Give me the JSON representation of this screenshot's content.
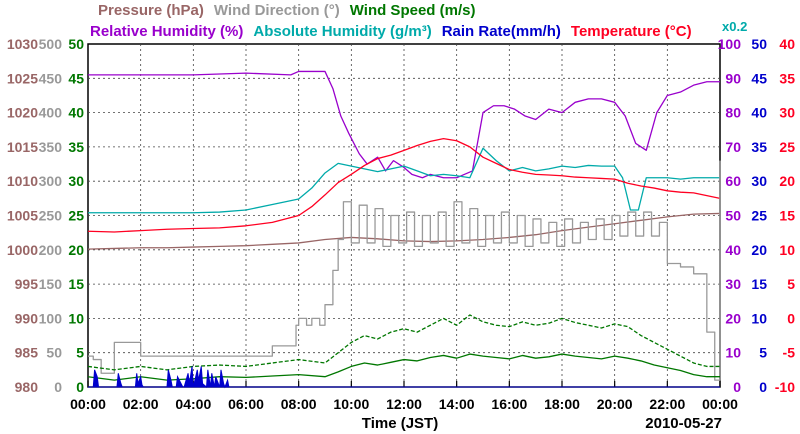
{
  "chart_data": {
    "type": "line",
    "title_rows": [
      [
        {
          "text": "Pressure (hPa)",
          "color": "#996666"
        },
        {
          "text": "Wind Direction (°)",
          "color": "#999999"
        },
        {
          "text": "Wind Speed (m/s)",
          "color": "#007700"
        }
      ],
      [
        {
          "text": "Relative Humidity (%)",
          "color": "#9900cc"
        },
        {
          "text": "Absolute Humidity (g/m³)",
          "color": "#00aaaa"
        },
        {
          "text": "Rain Rate(mm/h)",
          "color": "#0000cc"
        },
        {
          "text": "Temperature (°C)",
          "color": "#ff0022"
        }
      ]
    ],
    "corner_label": {
      "text": "x0.2",
      "color": "#00aaaa"
    },
    "xlabel": "Time (JST)",
    "date": "2010-05-27",
    "x_ticks": [
      "00:00",
      "02:00",
      "04:00",
      "06:00",
      "08:00",
      "10:00",
      "12:00",
      "14:00",
      "16:00",
      "18:00",
      "20:00",
      "22:00",
      "00:00"
    ],
    "xlim": [
      0,
      24
    ],
    "left_axes": [
      {
        "name": "pressure",
        "color": "#996666",
        "ticks": [
          "980",
          "985",
          "990",
          "995",
          "1000",
          "1005",
          "1010",
          "1015",
          "1020",
          "1025",
          "1030"
        ]
      },
      {
        "name": "wind_direction",
        "color": "#999999",
        "ticks": [
          "0",
          "50",
          "100",
          "150",
          "200",
          "250",
          "300",
          "350",
          "400",
          "450",
          "500"
        ]
      },
      {
        "name": "wind_speed",
        "color": "#007700",
        "ticks": [
          "0",
          "5",
          "10",
          "15",
          "20",
          "25",
          "30",
          "35",
          "40",
          "45",
          "50"
        ]
      }
    ],
    "right_axes": [
      {
        "name": "relative_humidity",
        "color": "#9900cc",
        "ticks": [
          "0",
          "10",
          "20",
          "30",
          "40",
          "50",
          "60",
          "70",
          "80",
          "90",
          "100"
        ]
      },
      {
        "name": "rain_rate",
        "color": "#0000cc",
        "ticks": [
          "0",
          "5",
          "10",
          "15",
          "20",
          "25",
          "30",
          "35",
          "40",
          "45",
          "50"
        ]
      },
      {
        "name": "temperature",
        "color": "#ff0022",
        "ticks": [
          "-10",
          "-5",
          "0",
          "5",
          "10",
          "15",
          "20",
          "25",
          "30",
          "35",
          "40"
        ]
      }
    ],
    "series": [
      {
        "name": "Pressure (hPa)",
        "color": "#996666",
        "ylim": [
          980,
          1030
        ],
        "x": [
          0,
          1,
          2,
          3,
          4,
          5,
          6,
          7,
          8,
          9,
          10,
          11,
          12,
          13,
          14,
          15,
          16,
          17,
          18,
          19,
          20,
          21,
          22,
          23,
          24
        ],
        "y": [
          1000.1,
          1000.2,
          1000.3,
          1000.3,
          1000.4,
          1000.5,
          1000.6,
          1000.8,
          1001.0,
          1001.5,
          1001.8,
          1001.6,
          1001.3,
          1001.2,
          1001.3,
          1001.5,
          1001.8,
          1002.2,
          1002.8,
          1003.3,
          1003.8,
          1004.3,
          1004.8,
          1005.2,
          1005.3
        ]
      },
      {
        "name": "Relative Humidity (%)",
        "color": "#9900cc",
        "ylim": [
          0,
          100
        ],
        "x": [
          0,
          2,
          4,
          6,
          7.7,
          8,
          8.5,
          9,
          9.3,
          9.6,
          9.9,
          10.3,
          10.6,
          11,
          11.3,
          11.6,
          12,
          12.3,
          12.7,
          13,
          13.5,
          14,
          14.3,
          14.6,
          15,
          15.4,
          15.8,
          16.2,
          16.6,
          17,
          17.5,
          18,
          18.5,
          19,
          19.5,
          20,
          20.4,
          20.8,
          21.2,
          21.6,
          22,
          22.5,
          23,
          23.5,
          24
        ],
        "y": [
          91,
          91,
          91,
          91.5,
          91,
          92,
          92,
          92,
          87,
          79,
          74,
          68,
          65,
          67,
          63,
          66,
          64,
          62,
          61,
          62,
          61,
          61,
          62,
          63,
          80,
          82,
          82,
          81,
          79,
          78,
          81,
          80,
          83,
          84,
          84,
          83,
          79,
          71,
          69,
          80,
          85,
          86,
          88,
          89,
          89
        ]
      },
      {
        "name": "Absolute Humidity (g/m³)",
        "color": "#00aaaa",
        "ylim": [
          0,
          500
        ],
        "x": [
          0,
          1,
          2,
          3,
          4,
          5,
          6,
          7,
          8,
          8.5,
          9,
          9.5,
          10,
          10.5,
          11,
          11.5,
          12,
          12.5,
          13,
          13.5,
          14,
          14.5,
          15,
          15.5,
          16,
          16.5,
          17,
          17.5,
          18,
          18.5,
          19,
          19.5,
          20,
          20.3,
          20.6,
          20.9,
          21.2,
          21.5,
          22,
          22.5,
          23,
          23.5,
          24
        ],
        "y": [
          254,
          254,
          254,
          254,
          254,
          255,
          258,
          266,
          274,
          290,
          312,
          326,
          322,
          318,
          314,
          318,
          322,
          315,
          308,
          310,
          308,
          305,
          348,
          330,
          315,
          320,
          315,
          318,
          322,
          320,
          323,
          322,
          322,
          305,
          258,
          258,
          305,
          305,
          305,
          303,
          305,
          305,
          305
        ]
      },
      {
        "name": "Temperature (°C)",
        "color": "#ff0022",
        "ylim": [
          -10,
          40
        ],
        "x": [
          0,
          1,
          2,
          3,
          4,
          5,
          6,
          7,
          8,
          8.5,
          9,
          9.5,
          10,
          10.5,
          11,
          11.5,
          12,
          12.5,
          13,
          13.5,
          14,
          14.5,
          15,
          15.5,
          16,
          16.5,
          17,
          17.5,
          18,
          18.5,
          19,
          19.5,
          20,
          20.5,
          21,
          21.5,
          22,
          22.5,
          23,
          23.5,
          24
        ],
        "y": [
          12.7,
          12.6,
          12.8,
          13.0,
          13.1,
          13.2,
          13.5,
          14.0,
          15.0,
          16.3,
          18.0,
          19.8,
          21.0,
          22.3,
          23.3,
          23.8,
          24.5,
          25.2,
          25.8,
          26.2,
          25.9,
          25.0,
          23.5,
          22.6,
          21.7,
          21.3,
          21.0,
          20.9,
          20.8,
          20.6,
          20.5,
          20.4,
          20.3,
          19.7,
          19.3,
          19.0,
          18.6,
          18.4,
          18.3,
          17.9,
          17.5
        ]
      },
      {
        "name": "Wind Direction (°)",
        "color": "#999999",
        "ylim": [
          0,
          500
        ],
        "style": "step",
        "x": [
          0,
          0.2,
          0.5,
          1,
          1.5,
          2,
          2.5,
          3,
          3.5,
          4,
          4.5,
          5,
          5.5,
          6,
          6.5,
          7,
          7.5,
          7.9,
          8,
          8.3,
          8.5,
          8.8,
          9,
          9.3,
          9.5,
          9.7,
          10,
          10.3,
          10.6,
          10.9,
          11.2,
          11.5,
          11.8,
          12.1,
          12.4,
          12.7,
          13,
          13.3,
          13.6,
          13.9,
          14.2,
          14.5,
          14.8,
          15.1,
          15.4,
          15.7,
          16,
          16.3,
          16.6,
          16.9,
          17.2,
          17.5,
          17.8,
          18.1,
          18.4,
          18.7,
          19,
          19.3,
          19.6,
          19.9,
          20.2,
          20.5,
          20.8,
          21.1,
          21.4,
          21.7,
          22,
          22.5,
          23,
          23.5,
          23.8,
          24
        ],
        "y": [
          45,
          40,
          20,
          65,
          65,
          45,
          45,
          45,
          45,
          45,
          45,
          45,
          45,
          45,
          45,
          60,
          60,
          90,
          100,
          90,
          100,
          90,
          120,
          170,
          215,
          270,
          210,
          265,
          210,
          260,
          205,
          250,
          210,
          255,
          205,
          250,
          210,
          255,
          205,
          270,
          210,
          260,
          205,
          250,
          210,
          255,
          210,
          250,
          205,
          245,
          210,
          240,
          205,
          245,
          210,
          240,
          215,
          245,
          215,
          250,
          220,
          255,
          220,
          255,
          220,
          240,
          180,
          175,
          165,
          80,
          10,
          330
        ]
      },
      {
        "name": "Wind Speed (m/s)",
        "color": "#007700",
        "ylim": [
          0,
          50
        ],
        "x": [
          0,
          1,
          2,
          3,
          4,
          5,
          6,
          7,
          8,
          9,
          9.5,
          10,
          10.5,
          11,
          11.5,
          12,
          12.5,
          13,
          13.5,
          14,
          14.5,
          15,
          15.5,
          16,
          16.5,
          17,
          17.5,
          18,
          18.5,
          19,
          19.5,
          20,
          20.5,
          21,
          21.5,
          22,
          22.5,
          23,
          23.5,
          24
        ],
        "y": [
          1.5,
          1,
          1.5,
          1,
          1.2,
          1.5,
          1.4,
          1.6,
          1.8,
          1.5,
          2.2,
          3,
          3.5,
          3.2,
          3.6,
          4,
          3.8,
          4.3,
          4.6,
          4.2,
          4.8,
          4.5,
          4.3,
          4.1,
          4.6,
          4.2,
          4.4,
          4.8,
          4.5,
          4.3,
          4.1,
          4.5,
          4.2,
          3.8,
          3.2,
          2.8,
          2.4,
          1.8,
          1.5,
          1.5
        ]
      },
      {
        "name": "Wind Speed (max) (m/s)",
        "color": "#007700",
        "ylim": [
          0,
          50
        ],
        "style": "dashed",
        "x": [
          0,
          1,
          2,
          3,
          4,
          5,
          6,
          7,
          8,
          9,
          9.5,
          10,
          10.5,
          11,
          11.5,
          12,
          12.5,
          13,
          13.5,
          14,
          14.5,
          15,
          15.5,
          16,
          16.5,
          17,
          17.5,
          18,
          18.5,
          19,
          19.5,
          20,
          20.5,
          21,
          21.5,
          22,
          22.5,
          23,
          23.5,
          24
        ],
        "y": [
          3,
          2.5,
          3,
          2.5,
          3,
          3.2,
          3,
          3.5,
          4,
          3.5,
          5,
          6.5,
          7.5,
          7,
          8,
          8.5,
          8,
          9,
          10,
          9,
          10.5,
          9.5,
          9,
          8.8,
          9.5,
          9,
          9.3,
          10,
          9.4,
          9,
          8.6,
          9.2,
          8.8,
          7.5,
          6.5,
          5.5,
          4.5,
          3.5,
          3,
          3
        ]
      },
      {
        "name": "Rain Rate(mm/h)",
        "color": "#0000cc",
        "ylim": [
          0,
          50
        ],
        "style": "area",
        "x": [
          0,
          0.2,
          0.25,
          0.35,
          0.4,
          1.1,
          1.15,
          1.25,
          1.3,
          1.8,
          1.85,
          1.9,
          2.0,
          2.05,
          2.1,
          3.0,
          3.05,
          3.15,
          3.2,
          3.35,
          3.4,
          3.6,
          3.65,
          3.8,
          3.85,
          3.95,
          4.0,
          4.15,
          4.2,
          4.3,
          4.35,
          4.5,
          4.55,
          4.65,
          4.7,
          4.8,
          4.85,
          5.0,
          5.05,
          5.15,
          5.2,
          5.3,
          5.35,
          5.5,
          24
        ],
        "y": [
          0,
          0,
          2.5,
          1.5,
          0,
          0,
          2,
          0.5,
          0,
          0,
          2,
          0.5,
          1.5,
          0.3,
          0,
          0,
          2.5,
          1,
          0,
          0,
          1.5,
          0,
          0,
          2,
          0.5,
          3,
          0,
          2.5,
          1,
          3,
          0.5,
          0,
          2.5,
          0,
          2,
          0,
          1.5,
          0,
          2.5,
          0.5,
          0,
          1,
          0,
          0,
          0
        ]
      }
    ]
  }
}
